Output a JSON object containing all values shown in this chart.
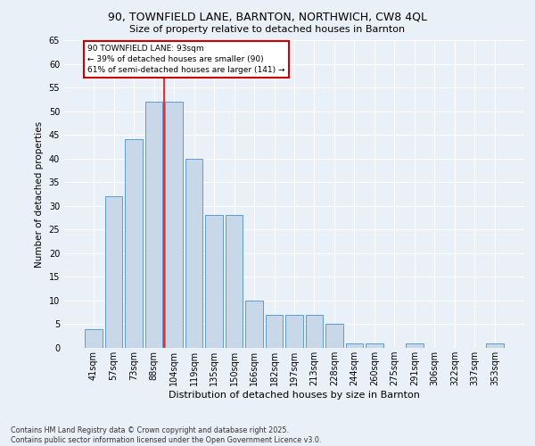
{
  "title1": "90, TOWNFIELD LANE, BARNTON, NORTHWICH, CW8 4QL",
  "title2": "Size of property relative to detached houses in Barnton",
  "xlabel": "Distribution of detached houses by size in Barnton",
  "ylabel": "Number of detached properties",
  "categories": [
    "41sqm",
    "57sqm",
    "73sqm",
    "88sqm",
    "104sqm",
    "119sqm",
    "135sqm",
    "150sqm",
    "166sqm",
    "182sqm",
    "197sqm",
    "213sqm",
    "228sqm",
    "244sqm",
    "260sqm",
    "275sqm",
    "291sqm",
    "306sqm",
    "322sqm",
    "337sqm",
    "353sqm"
  ],
  "values": [
    4,
    32,
    44,
    52,
    52,
    40,
    28,
    28,
    10,
    7,
    7,
    7,
    5,
    1,
    1,
    0,
    1,
    0,
    0,
    0,
    1
  ],
  "bar_color": "#c8d8e8",
  "bar_edgecolor": "#5b9bd5",
  "red_line_index": 3.5,
  "annotation_text": "90 TOWNFIELD LANE: 93sqm\n← 39% of detached houses are smaller (90)\n61% of semi-detached houses are larger (141) →",
  "annotation_box_color": "#ffffff",
  "annotation_box_edgecolor": "#cc0000",
  "footer": "Contains HM Land Registry data © Crown copyright and database right 2025.\nContains public sector information licensed under the Open Government Licence v3.0.",
  "bg_color": "#eaf0f8",
  "ylim": [
    0,
    65
  ],
  "yticks": [
    0,
    5,
    10,
    15,
    20,
    25,
    30,
    35,
    40,
    45,
    50,
    55,
    60,
    65
  ]
}
